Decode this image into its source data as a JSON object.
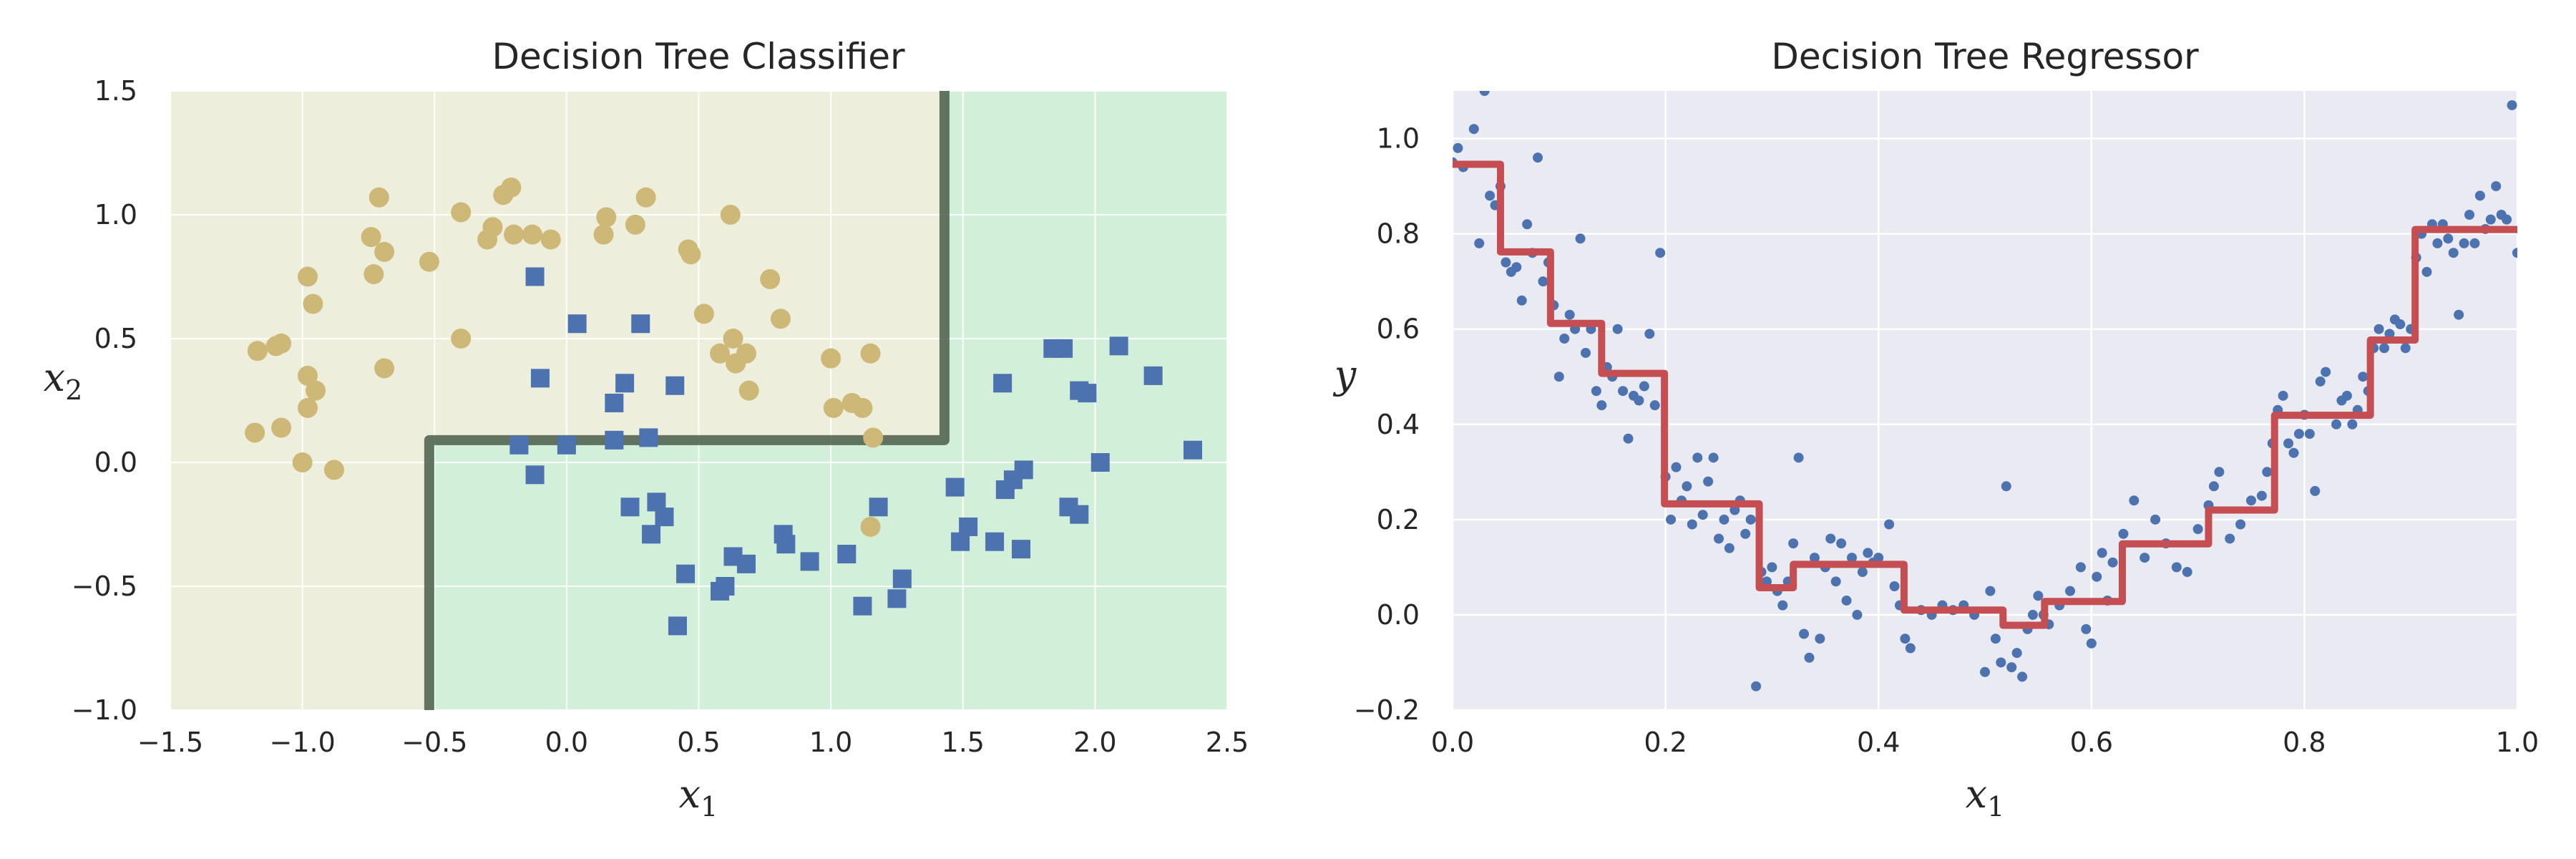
{
  "colors": {
    "class0_region": "#eeeedc",
    "class1_region": "#d2efd9",
    "class0_points": "#cdb877",
    "class1_points": "#4c72b0",
    "boundary": "#4a5d4a",
    "axes_background": "#eaeaf2",
    "grid": "#ffffff",
    "regression_points": "#4c72b0",
    "regression_line": "#c44e52"
  },
  "chart_data": [
    {
      "type": "scatter",
      "title": "Decision Tree Classifier",
      "xlabel": "x",
      "xlabel_sub": "1",
      "ylabel": "x",
      "ylabel_sub": "2",
      "xlim": [
        -1.5,
        2.5
      ],
      "ylim": [
        -1.0,
        1.5
      ],
      "xticks": [
        -1.5,
        -1.0,
        -0.5,
        0.0,
        0.5,
        1.0,
        1.5,
        2.0,
        2.5
      ],
      "xtick_labels": [
        "−1.5",
        "−1.0",
        "−0.5",
        "0.0",
        "0.5",
        "1.0",
        "1.5",
        "2.0",
        "2.5"
      ],
      "yticks": [
        -1.0,
        -0.5,
        0.0,
        0.5,
        1.0,
        1.5
      ],
      "ytick_labels": [
        "−1.0",
        "−0.5",
        "0.0",
        "0.5",
        "1.0",
        "1.5"
      ],
      "grid": true,
      "decision_boundary": [
        [
          -0.52,
          -1.0
        ],
        [
          -0.52,
          0.09
        ],
        [
          1.43,
          0.09
        ],
        [
          1.43,
          1.5
        ]
      ],
      "series": [
        {
          "marker": "circle",
          "points": [
            [
              -1.17,
              0.45
            ],
            [
              -1.18,
              0.12
            ],
            [
              -1.1,
              0.47
            ],
            [
              -1.08,
              0.48
            ],
            [
              -1.08,
              0.14
            ],
            [
              -1.0,
              0.0
            ],
            [
              -0.98,
              0.75
            ],
            [
              -0.98,
              0.35
            ],
            [
              -0.98,
              0.22
            ],
            [
              -0.96,
              0.64
            ],
            [
              -0.95,
              0.29
            ],
            [
              -0.88,
              -0.03
            ],
            [
              -0.74,
              0.91
            ],
            [
              -0.73,
              0.76
            ],
            [
              -0.71,
              1.07
            ],
            [
              -0.69,
              0.85
            ],
            [
              -0.69,
              0.38
            ],
            [
              -0.52,
              0.81
            ],
            [
              -0.4,
              1.01
            ],
            [
              -0.4,
              0.5
            ],
            [
              -0.3,
              0.9
            ],
            [
              -0.28,
              0.95
            ],
            [
              -0.24,
              1.08
            ],
            [
              -0.21,
              1.11
            ],
            [
              -0.2,
              0.92
            ],
            [
              -0.13,
              0.92
            ],
            [
              -0.06,
              0.9
            ],
            [
              0.14,
              0.92
            ],
            [
              0.15,
              0.99
            ],
            [
              0.26,
              0.96
            ],
            [
              0.3,
              1.07
            ],
            [
              0.46,
              0.86
            ],
            [
              0.47,
              0.84
            ],
            [
              0.52,
              0.6
            ],
            [
              0.58,
              0.44
            ],
            [
              0.62,
              1.0
            ],
            [
              0.63,
              0.5
            ],
            [
              0.64,
              0.4
            ],
            [
              0.68,
              0.44
            ],
            [
              0.69,
              0.29
            ],
            [
              0.77,
              0.74
            ],
            [
              0.81,
              0.58
            ],
            [
              1.0,
              0.42
            ],
            [
              1.01,
              0.22
            ],
            [
              1.08,
              0.24
            ],
            [
              1.12,
              0.22
            ],
            [
              1.15,
              0.44
            ],
            [
              1.16,
              0.1
            ],
            [
              1.15,
              -0.26
            ]
          ]
        },
        {
          "marker": "square",
          "points": [
            [
              -0.12,
              0.75
            ],
            [
              -0.18,
              0.07
            ],
            [
              -0.12,
              -0.05
            ],
            [
              -0.1,
              0.34
            ],
            [
              0.0,
              0.07
            ],
            [
              0.04,
              0.56
            ],
            [
              0.18,
              0.24
            ],
            [
              0.18,
              0.09
            ],
            [
              0.22,
              0.32
            ],
            [
              0.24,
              -0.18
            ],
            [
              0.28,
              0.56
            ],
            [
              0.31,
              0.1
            ],
            [
              0.32,
              -0.29
            ],
            [
              0.34,
              -0.16
            ],
            [
              0.37,
              -0.22
            ],
            [
              0.41,
              0.31
            ],
            [
              0.42,
              -0.66
            ],
            [
              0.45,
              -0.45
            ],
            [
              0.58,
              -0.52
            ],
            [
              0.6,
              -0.5
            ],
            [
              0.63,
              -0.38
            ],
            [
              0.68,
              -0.41
            ],
            [
              0.82,
              -0.29
            ],
            [
              0.83,
              -0.33
            ],
            [
              0.92,
              -0.4
            ],
            [
              1.06,
              -0.37
            ],
            [
              1.12,
              -0.58
            ],
            [
              1.18,
              -0.18
            ],
            [
              1.25,
              -0.55
            ],
            [
              1.27,
              -0.47
            ],
            [
              1.47,
              -0.1
            ],
            [
              1.49,
              -0.32
            ],
            [
              1.52,
              -0.26
            ],
            [
              1.62,
              -0.32
            ],
            [
              1.65,
              0.32
            ],
            [
              1.66,
              -0.11
            ],
            [
              1.69,
              -0.07
            ],
            [
              1.72,
              -0.35
            ],
            [
              1.73,
              -0.03
            ],
            [
              1.84,
              0.46
            ],
            [
              1.88,
              0.46
            ],
            [
              1.9,
              -0.18
            ],
            [
              1.94,
              -0.21
            ],
            [
              1.94,
              0.29
            ],
            [
              1.97,
              0.28
            ],
            [
              2.02,
              0.0
            ],
            [
              2.09,
              0.47
            ],
            [
              2.22,
              0.35
            ],
            [
              2.37,
              0.05
            ]
          ]
        }
      ]
    },
    {
      "type": "scatter",
      "title": "Decision Tree Regressor",
      "xlabel": "x",
      "xlabel_sub": "1",
      "ylabel": "y",
      "xlim": [
        0.0,
        1.0
      ],
      "ylim": [
        -0.2,
        1.1
      ],
      "xticks": [
        0.0,
        0.2,
        0.4,
        0.6,
        0.8,
        1.0
      ],
      "xtick_labels": [
        "0.0",
        "0.2",
        "0.4",
        "0.6",
        "0.8",
        "1.0"
      ],
      "yticks": [
        -0.2,
        0.0,
        0.2,
        0.4,
        0.6,
        0.8,
        1.0
      ],
      "ytick_labels": [
        "−0.2",
        "0.0",
        "0.2",
        "0.4",
        "0.6",
        "0.8",
        "1.0"
      ],
      "grid": true,
      "points": [
        [
          0.0,
          0.95
        ],
        [
          0.005,
          0.98
        ],
        [
          0.01,
          0.94
        ],
        [
          0.02,
          1.02
        ],
        [
          0.025,
          0.78
        ],
        [
          0.03,
          1.1
        ],
        [
          0.035,
          0.88
        ],
        [
          0.04,
          0.86
        ],
        [
          0.045,
          0.9
        ],
        [
          0.05,
          0.74
        ],
        [
          0.055,
          0.72
        ],
        [
          0.06,
          0.73
        ],
        [
          0.065,
          0.66
        ],
        [
          0.07,
          0.82
        ],
        [
          0.075,
          0.76
        ],
        [
          0.08,
          0.96
        ],
        [
          0.085,
          0.7
        ],
        [
          0.09,
          0.74
        ],
        [
          0.095,
          0.65
        ],
        [
          0.1,
          0.5
        ],
        [
          0.105,
          0.58
        ],
        [
          0.11,
          0.63
        ],
        [
          0.115,
          0.6
        ],
        [
          0.12,
          0.79
        ],
        [
          0.125,
          0.55
        ],
        [
          0.13,
          0.6
        ],
        [
          0.135,
          0.47
        ],
        [
          0.14,
          0.44
        ],
        [
          0.145,
          0.52
        ],
        [
          0.15,
          0.5
        ],
        [
          0.155,
          0.6
        ],
        [
          0.16,
          0.47
        ],
        [
          0.165,
          0.37
        ],
        [
          0.17,
          0.46
        ],
        [
          0.175,
          0.45
        ],
        [
          0.18,
          0.48
        ],
        [
          0.185,
          0.59
        ],
        [
          0.19,
          0.44
        ],
        [
          0.195,
          0.76
        ],
        [
          0.2,
          0.29
        ],
        [
          0.205,
          0.2
        ],
        [
          0.21,
          0.31
        ],
        [
          0.215,
          0.24
        ],
        [
          0.22,
          0.27
        ],
        [
          0.225,
          0.19
        ],
        [
          0.23,
          0.33
        ],
        [
          0.235,
          0.21
        ],
        [
          0.24,
          0.28
        ],
        [
          0.245,
          0.33
        ],
        [
          0.25,
          0.16
        ],
        [
          0.255,
          0.2
        ],
        [
          0.26,
          0.14
        ],
        [
          0.265,
          0.22
        ],
        [
          0.27,
          0.24
        ],
        [
          0.275,
          0.17
        ],
        [
          0.28,
          0.2
        ],
        [
          0.285,
          -0.15
        ],
        [
          0.29,
          0.09
        ],
        [
          0.295,
          0.07
        ],
        [
          0.3,
          0.1
        ],
        [
          0.305,
          0.05
        ],
        [
          0.31,
          0.02
        ],
        [
          0.315,
          0.07
        ],
        [
          0.32,
          0.15
        ],
        [
          0.325,
          0.33
        ],
        [
          0.33,
          -0.04
        ],
        [
          0.335,
          -0.09
        ],
        [
          0.34,
          0.12
        ],
        [
          0.345,
          -0.05
        ],
        [
          0.35,
          0.1
        ],
        [
          0.355,
          0.16
        ],
        [
          0.36,
          0.07
        ],
        [
          0.365,
          0.15
        ],
        [
          0.37,
          0.03
        ],
        [
          0.375,
          0.12
        ],
        [
          0.38,
          0.0
        ],
        [
          0.385,
          0.09
        ],
        [
          0.39,
          0.13
        ],
        [
          0.395,
          0.11
        ],
        [
          0.4,
          0.12
        ],
        [
          0.41,
          0.19
        ],
        [
          0.415,
          0.06
        ],
        [
          0.42,
          0.02
        ],
        [
          0.425,
          -0.05
        ],
        [
          0.43,
          -0.07
        ],
        [
          0.44,
          0.01
        ],
        [
          0.45,
          0.0
        ],
        [
          0.46,
          0.02
        ],
        [
          0.47,
          0.01
        ],
        [
          0.48,
          0.02
        ],
        [
          0.49,
          0.0
        ],
        [
          0.5,
          -0.12
        ],
        [
          0.505,
          0.05
        ],
        [
          0.51,
          -0.05
        ],
        [
          0.515,
          -0.1
        ],
        [
          0.52,
          0.27
        ],
        [
          0.525,
          -0.11
        ],
        [
          0.53,
          -0.08
        ],
        [
          0.535,
          -0.13
        ],
        [
          0.54,
          -0.03
        ],
        [
          0.545,
          0.0
        ],
        [
          0.55,
          0.04
        ],
        [
          0.555,
          0.0
        ],
        [
          0.56,
          -0.02
        ],
        [
          0.57,
          0.02
        ],
        [
          0.58,
          0.05
        ],
        [
          0.59,
          0.1
        ],
        [
          0.595,
          -0.03
        ],
        [
          0.6,
          -0.06
        ],
        [
          0.605,
          0.08
        ],
        [
          0.61,
          0.13
        ],
        [
          0.615,
          0.03
        ],
        [
          0.62,
          0.11
        ],
        [
          0.63,
          0.17
        ],
        [
          0.64,
          0.24
        ],
        [
          0.65,
          0.12
        ],
        [
          0.66,
          0.2
        ],
        [
          0.67,
          0.15
        ],
        [
          0.68,
          0.1
        ],
        [
          0.69,
          0.09
        ],
        [
          0.7,
          0.18
        ],
        [
          0.71,
          0.23
        ],
        [
          0.715,
          0.27
        ],
        [
          0.72,
          0.3
        ],
        [
          0.73,
          0.16
        ],
        [
          0.74,
          0.19
        ],
        [
          0.75,
          0.24
        ],
        [
          0.76,
          0.25
        ],
        [
          0.765,
          0.3
        ],
        [
          0.77,
          0.36
        ],
        [
          0.775,
          0.43
        ],
        [
          0.78,
          0.46
        ],
        [
          0.785,
          0.36
        ],
        [
          0.79,
          0.34
        ],
        [
          0.795,
          0.38
        ],
        [
          0.8,
          0.42
        ],
        [
          0.805,
          0.38
        ],
        [
          0.81,
          0.26
        ],
        [
          0.815,
          0.49
        ],
        [
          0.82,
          0.51
        ],
        [
          0.83,
          0.4
        ],
        [
          0.835,
          0.45
        ],
        [
          0.84,
          0.46
        ],
        [
          0.845,
          0.4
        ],
        [
          0.85,
          0.43
        ],
        [
          0.855,
          0.5
        ],
        [
          0.86,
          0.47
        ],
        [
          0.865,
          0.56
        ],
        [
          0.87,
          0.6
        ],
        [
          0.875,
          0.56
        ],
        [
          0.88,
          0.59
        ],
        [
          0.885,
          0.62
        ],
        [
          0.89,
          0.61
        ],
        [
          0.895,
          0.56
        ],
        [
          0.9,
          0.6
        ],
        [
          0.905,
          0.75
        ],
        [
          0.91,
          0.8
        ],
        [
          0.915,
          0.72
        ],
        [
          0.92,
          0.82
        ],
        [
          0.925,
          0.78
        ],
        [
          0.93,
          0.82
        ],
        [
          0.935,
          0.79
        ],
        [
          0.94,
          0.76
        ],
        [
          0.945,
          0.63
        ],
        [
          0.95,
          0.78
        ],
        [
          0.955,
          0.84
        ],
        [
          0.96,
          0.78
        ],
        [
          0.965,
          0.88
        ],
        [
          0.97,
          0.81
        ],
        [
          0.975,
          0.83
        ],
        [
          0.98,
          0.9
        ],
        [
          0.985,
          0.84
        ],
        [
          0.99,
          0.83
        ],
        [
          0.995,
          1.07
        ],
        [
          1.0,
          0.76
        ]
      ],
      "prediction_steps": [
        [
          0.0,
          0.946
        ],
        [
          0.045,
          0.946
        ],
        [
          0.045,
          0.762
        ],
        [
          0.092,
          0.762
        ],
        [
          0.092,
          0.612
        ],
        [
          0.14,
          0.612
        ],
        [
          0.14,
          0.507
        ],
        [
          0.199,
          0.507
        ],
        [
          0.199,
          0.233
        ],
        [
          0.288,
          0.233
        ],
        [
          0.288,
          0.057
        ],
        [
          0.32,
          0.057
        ],
        [
          0.32,
          0.106
        ],
        [
          0.424,
          0.106
        ],
        [
          0.424,
          0.01
        ],
        [
          0.517,
          0.01
        ],
        [
          0.517,
          -0.022
        ],
        [
          0.556,
          -0.022
        ],
        [
          0.556,
          0.028
        ],
        [
          0.629,
          0.028
        ],
        [
          0.629,
          0.149
        ],
        [
          0.71,
          0.149
        ],
        [
          0.71,
          0.22
        ],
        [
          0.772,
          0.22
        ],
        [
          0.772,
          0.419
        ],
        [
          0.862,
          0.419
        ],
        [
          0.862,
          0.577
        ],
        [
          0.904,
          0.577
        ],
        [
          0.904,
          0.809
        ],
        [
          1.0,
          0.809
        ]
      ]
    }
  ]
}
